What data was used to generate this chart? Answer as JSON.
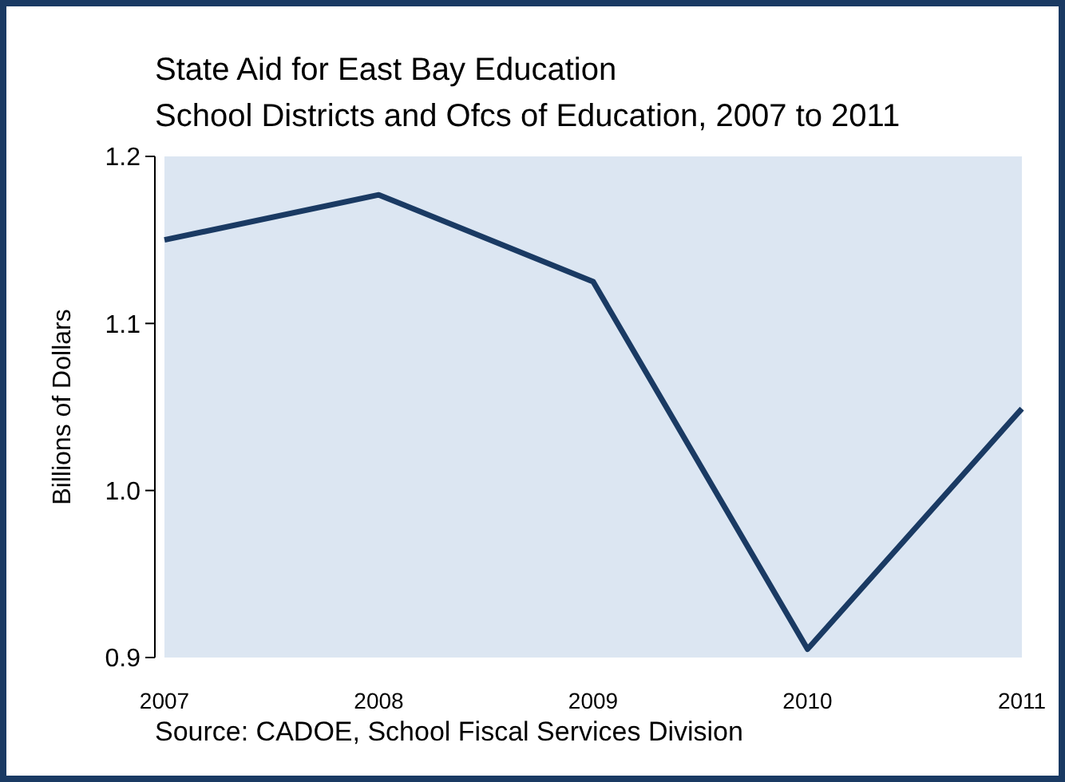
{
  "chart_data": {
    "type": "line",
    "title": "State Aid for East Bay Education",
    "subtitle": "School Districts and Ofcs of Education, 2007 to 2011",
    "ylabel": "Billions of Dollars",
    "x": [
      2007,
      2008,
      2009,
      2010,
      2011
    ],
    "xlim": [
      2007,
      2011
    ],
    "xticks": [
      2007,
      2008,
      2009,
      2010,
      2011
    ],
    "ylim": [
      0.9,
      1.2
    ],
    "yticks": [
      {
        "value": 0.9,
        "label": "0.9"
      },
      {
        "value": 1.0,
        "label": "1.0"
      },
      {
        "value": 1.1,
        "label": "1.1"
      },
      {
        "value": 1.2,
        "label": "1.2"
      }
    ],
    "series": [
      {
        "color": "#1a3a63",
        "values": [
          1.15,
          1.177,
          1.125,
          0.905,
          1.049
        ]
      }
    ],
    "annotations": [
      "Source: CADOE, School Fiscal Services Division"
    ],
    "marker": "none",
    "line_style": "solid"
  }
}
